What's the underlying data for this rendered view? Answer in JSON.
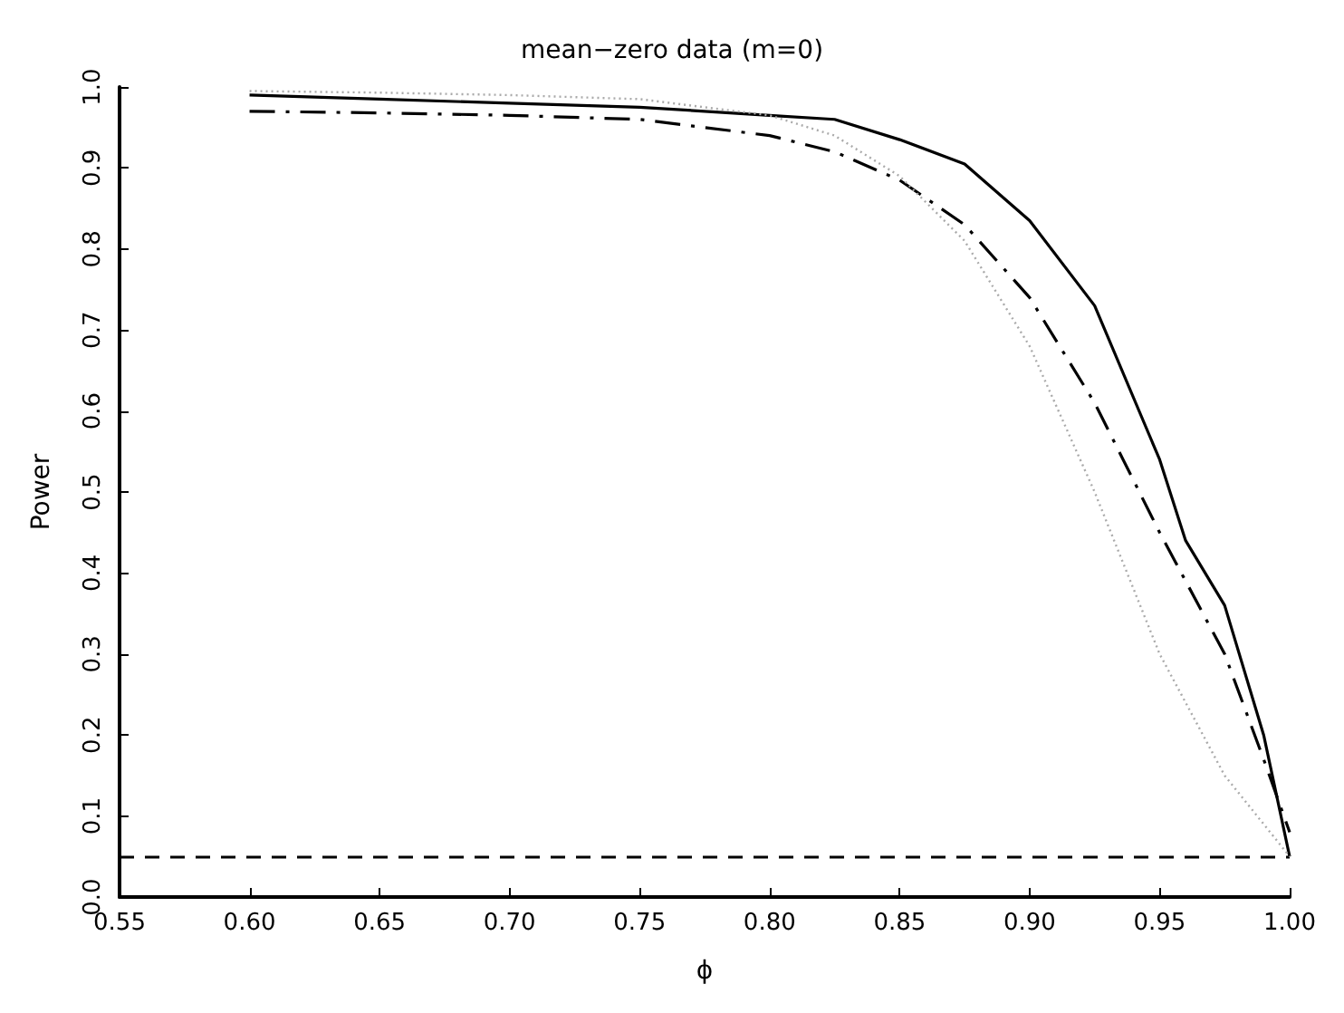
{
  "chart_data": {
    "type": "line",
    "title": "mean−zero data (m=0)",
    "xlabel": "ϕ",
    "ylabel": "Power",
    "x": [
      0.6,
      0.65,
      0.7,
      0.75,
      0.8,
      0.825,
      0.85,
      0.875,
      0.9,
      0.925,
      0.95,
      0.96,
      0.975,
      0.99,
      1.0
    ],
    "series": [
      {
        "color": "#000000",
        "line_style": "solid",
        "values": [
          0.99,
          0.985,
          0.98,
          0.975,
          0.965,
          0.96,
          0.935,
          0.905,
          0.835,
          0.73,
          0.54,
          0.44,
          0.36,
          0.2,
          0.05
        ]
      },
      {
        "color": "#000000",
        "line_style": "dashed",
        "values": [
          0.97,
          0.968,
          0.965,
          0.96,
          0.94,
          0.92,
          0.885,
          0.83,
          0.74,
          0.61,
          0.45,
          0.39,
          0.3,
          0.17,
          0.08
        ]
      },
      {
        "color": "#aaaaaa",
        "line_style": "dotted",
        "values": [
          0.995,
          0.993,
          0.99,
          0.985,
          0.965,
          0.94,
          0.89,
          0.81,
          0.68,
          0.5,
          0.3,
          0.24,
          0.15,
          0.09,
          0.05
        ]
      }
    ],
    "ref_lines": [
      {
        "axis": "y",
        "value": 0.05,
        "line_style": "dashed",
        "color": "#000000"
      }
    ],
    "xlim": [
      0.55,
      1.0
    ],
    "xticks": [
      0.55,
      {
        "value": 0.6,
        "label": "0.60"
      },
      0.65,
      {
        "value": 0.7,
        "label": "0.70"
      },
      0.75,
      {
        "value": 0.8,
        "label": "0.80"
      },
      0.85,
      {
        "value": 0.9,
        "label": "0.90"
      },
      0.95,
      {
        "value": 1.0,
        "label": "1.00"
      }
    ],
    "ylim": [
      0,
      1.0
    ],
    "yticks": [
      {
        "value": 0,
        "label": "0.0"
      },
      0.1,
      0.2,
      0.3,
      0.4,
      0.5,
      0.6,
      0.7,
      0.8,
      0.9,
      {
        "value": 1.0,
        "label": "1.0"
      }
    ],
    "grid": false,
    "marker": "none"
  }
}
